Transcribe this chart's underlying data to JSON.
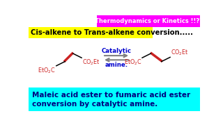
{
  "bg_color": "#ffffff",
  "top_banner_color": "#ff00ff",
  "top_banner_text": "Thermodynamics or Kinetics !!??",
  "top_banner_text_color": "#ffffff",
  "title_bg_color": "#ffff00",
  "title_text": "Cis-alkene to Trans-alkene conversion.....",
  "title_text_color": "#000000",
  "bottom_banner_color": "#00ffff",
  "bottom_banner_text_line1": "Maleic acid ester to fumaric acid ester",
  "bottom_banner_text_line2": "conversion by catalytic amine.",
  "bottom_banner_text_color": "#000080",
  "arrow_label_top": "Catalytic",
  "arrow_label_bottom": "amine.",
  "arrow_label_color": "#0000cd",
  "structure_color": "#cc2222"
}
